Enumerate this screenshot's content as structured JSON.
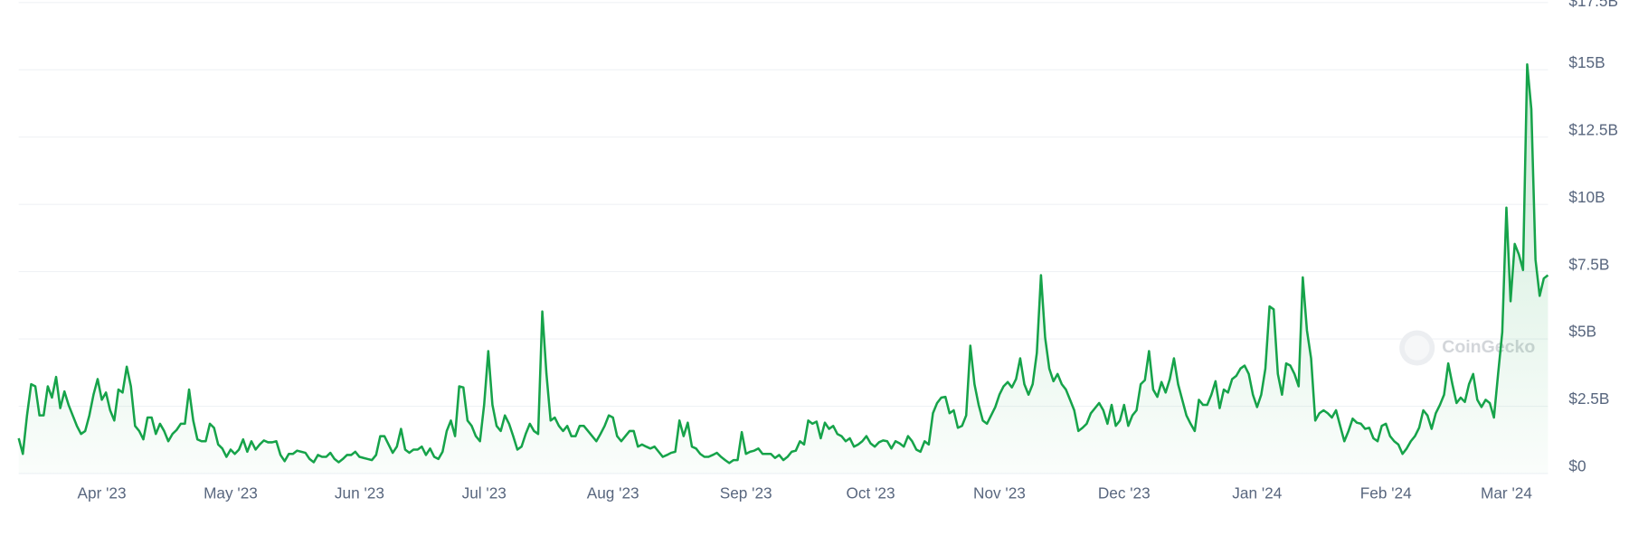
{
  "chart_data": {
    "type": "line",
    "categories": [
      null,
      null,
      null,
      null,
      null,
      null,
      null,
      null,
      null,
      null,
      null,
      null,
      null,
      null,
      null,
      null,
      null,
      null,
      null,
      null,
      "Apr '23",
      null,
      null,
      null,
      null,
      null,
      null,
      null,
      null,
      null,
      null,
      null,
      null,
      null,
      null,
      null,
      null,
      null,
      null,
      null,
      null,
      null,
      null,
      null,
      null,
      null,
      null,
      null,
      null,
      null,
      null,
      "May '23",
      null,
      null,
      null,
      null,
      null,
      null,
      null,
      null,
      null,
      null,
      null,
      null,
      null,
      null,
      null,
      null,
      null,
      null,
      null,
      null,
      null,
      null,
      null,
      null,
      null,
      null,
      null,
      null,
      null,
      null,
      "Jun '23",
      null,
      null,
      null,
      null,
      null,
      null,
      null,
      null,
      null,
      null,
      null,
      null,
      null,
      null,
      null,
      null,
      null,
      null,
      null,
      null,
      null,
      null,
      null,
      null,
      null,
      null,
      null,
      null,
      null,
      "Jul '23",
      null,
      null,
      null,
      null,
      null,
      null,
      null,
      null,
      null,
      null,
      null,
      null,
      null,
      null,
      null,
      null,
      null,
      null,
      null,
      null,
      null,
      null,
      null,
      null,
      null,
      null,
      null,
      null,
      null,
      null,
      "Aug '23",
      null,
      null,
      null,
      null,
      null,
      null,
      null,
      null,
      null,
      null,
      null,
      null,
      null,
      null,
      null,
      null,
      null,
      null,
      null,
      null,
      null,
      null,
      null,
      null,
      null,
      null,
      null,
      null,
      null,
      null,
      null,
      "Sep '23",
      null,
      null,
      null,
      null,
      null,
      null,
      null,
      null,
      null,
      null,
      null,
      null,
      null,
      null,
      null,
      null,
      null,
      null,
      null,
      null,
      null,
      null,
      null,
      null,
      null,
      null,
      null,
      null,
      null,
      "Oct '23",
      null,
      null,
      null,
      null,
      null,
      null,
      null,
      null,
      null,
      null,
      null,
      null,
      null,
      null,
      null,
      null,
      null,
      null,
      null,
      null,
      null,
      null,
      null,
      null,
      null,
      null,
      null,
      null,
      null,
      null,
      "Nov '23",
      null,
      null,
      null,
      null,
      null,
      null,
      null,
      null,
      null,
      null,
      null,
      null,
      null,
      null,
      null,
      null,
      null,
      null,
      null,
      null,
      null,
      null,
      null,
      null,
      null,
      null,
      null,
      null,
      null,
      "Dec '23",
      null,
      null,
      null,
      null,
      null,
      null,
      null,
      null,
      null,
      null,
      null,
      null,
      null,
      null,
      null,
      null,
      null,
      null,
      null,
      null,
      null,
      null,
      null,
      null,
      null,
      null,
      null,
      null,
      null,
      null,
      null,
      "Jan '24",
      null,
      null,
      null,
      null,
      null,
      null,
      null,
      null,
      null,
      null,
      null,
      null,
      null,
      null,
      null,
      null,
      null,
      null,
      null,
      null,
      null,
      null,
      null,
      null,
      null,
      null,
      null,
      null,
      null,
      null,
      "Feb '24",
      null,
      null,
      null,
      null,
      null,
      null,
      null,
      null,
      null,
      null,
      null,
      null,
      null,
      null,
      null,
      null,
      null,
      null,
      null,
      null,
      null,
      null,
      null,
      null,
      null,
      null,
      null,
      null,
      "Mar '24",
      null,
      null,
      null,
      null,
      null,
      null,
      null,
      null,
      null,
      null
    ],
    "values": [
      1.31,
      0.73,
      2.16,
      3.32,
      3.24,
      2.16,
      2.16,
      3.24,
      2.82,
      3.59,
      2.43,
      3.05,
      2.55,
      2.16,
      1.77,
      1.47,
      1.58,
      2.16,
      2.93,
      3.51,
      2.74,
      3.01,
      2.35,
      1.97,
      3.12,
      3.01,
      3.97,
      3.24,
      1.77,
      1.58,
      1.27,
      2.08,
      2.08,
      1.47,
      1.85,
      1.58,
      1.2,
      1.47,
      1.62,
      1.85,
      1.85,
      3.12,
      1.97,
      1.27,
      1.2,
      1.2,
      1.85,
      1.7,
      1.08,
      0.93,
      0.62,
      0.89,
      0.73,
      0.89,
      1.27,
      0.81,
      1.2,
      0.89,
      1.08,
      1.23,
      1.16,
      1.16,
      1.2,
      0.69,
      0.46,
      0.73,
      0.73,
      0.85,
      0.81,
      0.77,
      0.54,
      0.42,
      0.69,
      0.62,
      0.62,
      0.77,
      0.54,
      0.42,
      0.54,
      0.69,
      0.69,
      0.81,
      0.62,
      0.58,
      0.54,
      0.5,
      0.69,
      1.39,
      1.39,
      1.08,
      0.77,
      1.0,
      1.66,
      0.89,
      0.77,
      0.89,
      0.89,
      1.0,
      0.69,
      0.93,
      0.62,
      0.54,
      0.81,
      1.58,
      1.97,
      1.39,
      3.24,
      3.2,
      1.97,
      1.77,
      1.39,
      1.2,
      2.55,
      4.55,
      2.55,
      1.77,
      1.58,
      2.16,
      1.85,
      1.39,
      0.89,
      1.0,
      1.47,
      1.85,
      1.58,
      1.47,
      6.02,
      3.7,
      1.97,
      2.08,
      1.77,
      1.58,
      1.77,
      1.39,
      1.39,
      1.77,
      1.77,
      1.58,
      1.39,
      1.2,
      1.47,
      1.77,
      2.16,
      2.08,
      1.39,
      1.2,
      1.39,
      1.58,
      1.58,
      1.0,
      1.08,
      1.0,
      0.93,
      1.0,
      0.81,
      0.62,
      0.69,
      0.77,
      0.81,
      1.97,
      1.39,
      1.89,
      1.0,
      0.93,
      0.73,
      0.62,
      0.62,
      0.69,
      0.77,
      0.62,
      0.5,
      0.39,
      0.5,
      0.5,
      1.54,
      0.73,
      0.81,
      0.85,
      0.93,
      0.73,
      0.73,
      0.73,
      0.58,
      0.69,
      0.5,
      0.62,
      0.81,
      0.85,
      1.2,
      1.08,
      1.97,
      1.85,
      1.93,
      1.31,
      1.89,
      1.66,
      1.77,
      1.47,
      1.39,
      1.2,
      1.31,
      1.0,
      1.08,
      1.2,
      1.39,
      1.12,
      1.0,
      1.16,
      1.23,
      1.2,
      0.93,
      1.2,
      1.12,
      1.0,
      1.39,
      1.2,
      0.89,
      0.81,
      1.2,
      1.08,
      2.24,
      2.62,
      2.82,
      2.85,
      2.24,
      2.35,
      1.7,
      1.77,
      2.16,
      4.75,
      3.32,
      2.55,
      1.97,
      1.85,
      2.16,
      2.47,
      2.93,
      3.24,
      3.4,
      3.2,
      3.51,
      4.28,
      3.32,
      2.93,
      3.32,
      4.48,
      7.37,
      5.05,
      3.9,
      3.43,
      3.7,
      3.32,
      3.12,
      2.74,
      2.35,
      1.58,
      1.7,
      1.85,
      2.24,
      2.43,
      2.62,
      2.35,
      1.85,
      2.55,
      1.77,
      1.97,
      2.55,
      1.77,
      2.16,
      2.35,
      3.32,
      3.47,
      4.55,
      3.12,
      2.85,
      3.4,
      3.01,
      3.51,
      4.28,
      3.32,
      2.74,
      2.16,
      1.85,
      1.58,
      2.74,
      2.55,
      2.55,
      2.93,
      3.43,
      2.43,
      3.12,
      3.01,
      3.51,
      3.63,
      3.9,
      4.01,
      3.7,
      2.93,
      2.47,
      2.93,
      3.9,
      6.21,
      6.1,
      3.7,
      2.93,
      4.09,
      4.01,
      3.7,
      3.24,
      7.29,
      5.32,
      4.28,
      1.97,
      2.24,
      2.35,
      2.24,
      2.08,
      2.35,
      1.77,
      1.2,
      1.58,
      2.04,
      1.89,
      1.85,
      1.66,
      1.7,
      1.31,
      1.2,
      1.77,
      1.85,
      1.39,
      1.2,
      1.08,
      0.73,
      0.93,
      1.2,
      1.39,
      1.7,
      2.35,
      2.16,
      1.66,
      2.24,
      2.55,
      2.93,
      4.09,
      3.32,
      2.62,
      2.82,
      2.66,
      3.32,
      3.7,
      2.74,
      2.47,
      2.74,
      2.62,
      2.08,
      3.7,
      5.25,
      9.88,
      6.4,
      8.53,
      8.14,
      7.56,
      15.2,
      13.54,
      7.95,
      6.6,
      7.25,
      7.37
    ],
    "color": "#16a34a",
    "ylim": [
      0,
      17.5
    ],
    "yticks": [
      {
        "value": 0,
        "label": "$0"
      },
      {
        "value": 2.5,
        "label": "$2.5B"
      },
      {
        "value": 5,
        "label": "$5B"
      },
      {
        "value": 7.5,
        "label": "$7.5B"
      },
      {
        "value": 10,
        "label": "$10B"
      },
      {
        "value": 12.5,
        "label": "$12.5B"
      },
      {
        "value": 15,
        "label": "$15B"
      },
      {
        "value": 17.5,
        "label": "$17.5B"
      }
    ],
    "grid": true,
    "watermark": "CoinGecko"
  }
}
